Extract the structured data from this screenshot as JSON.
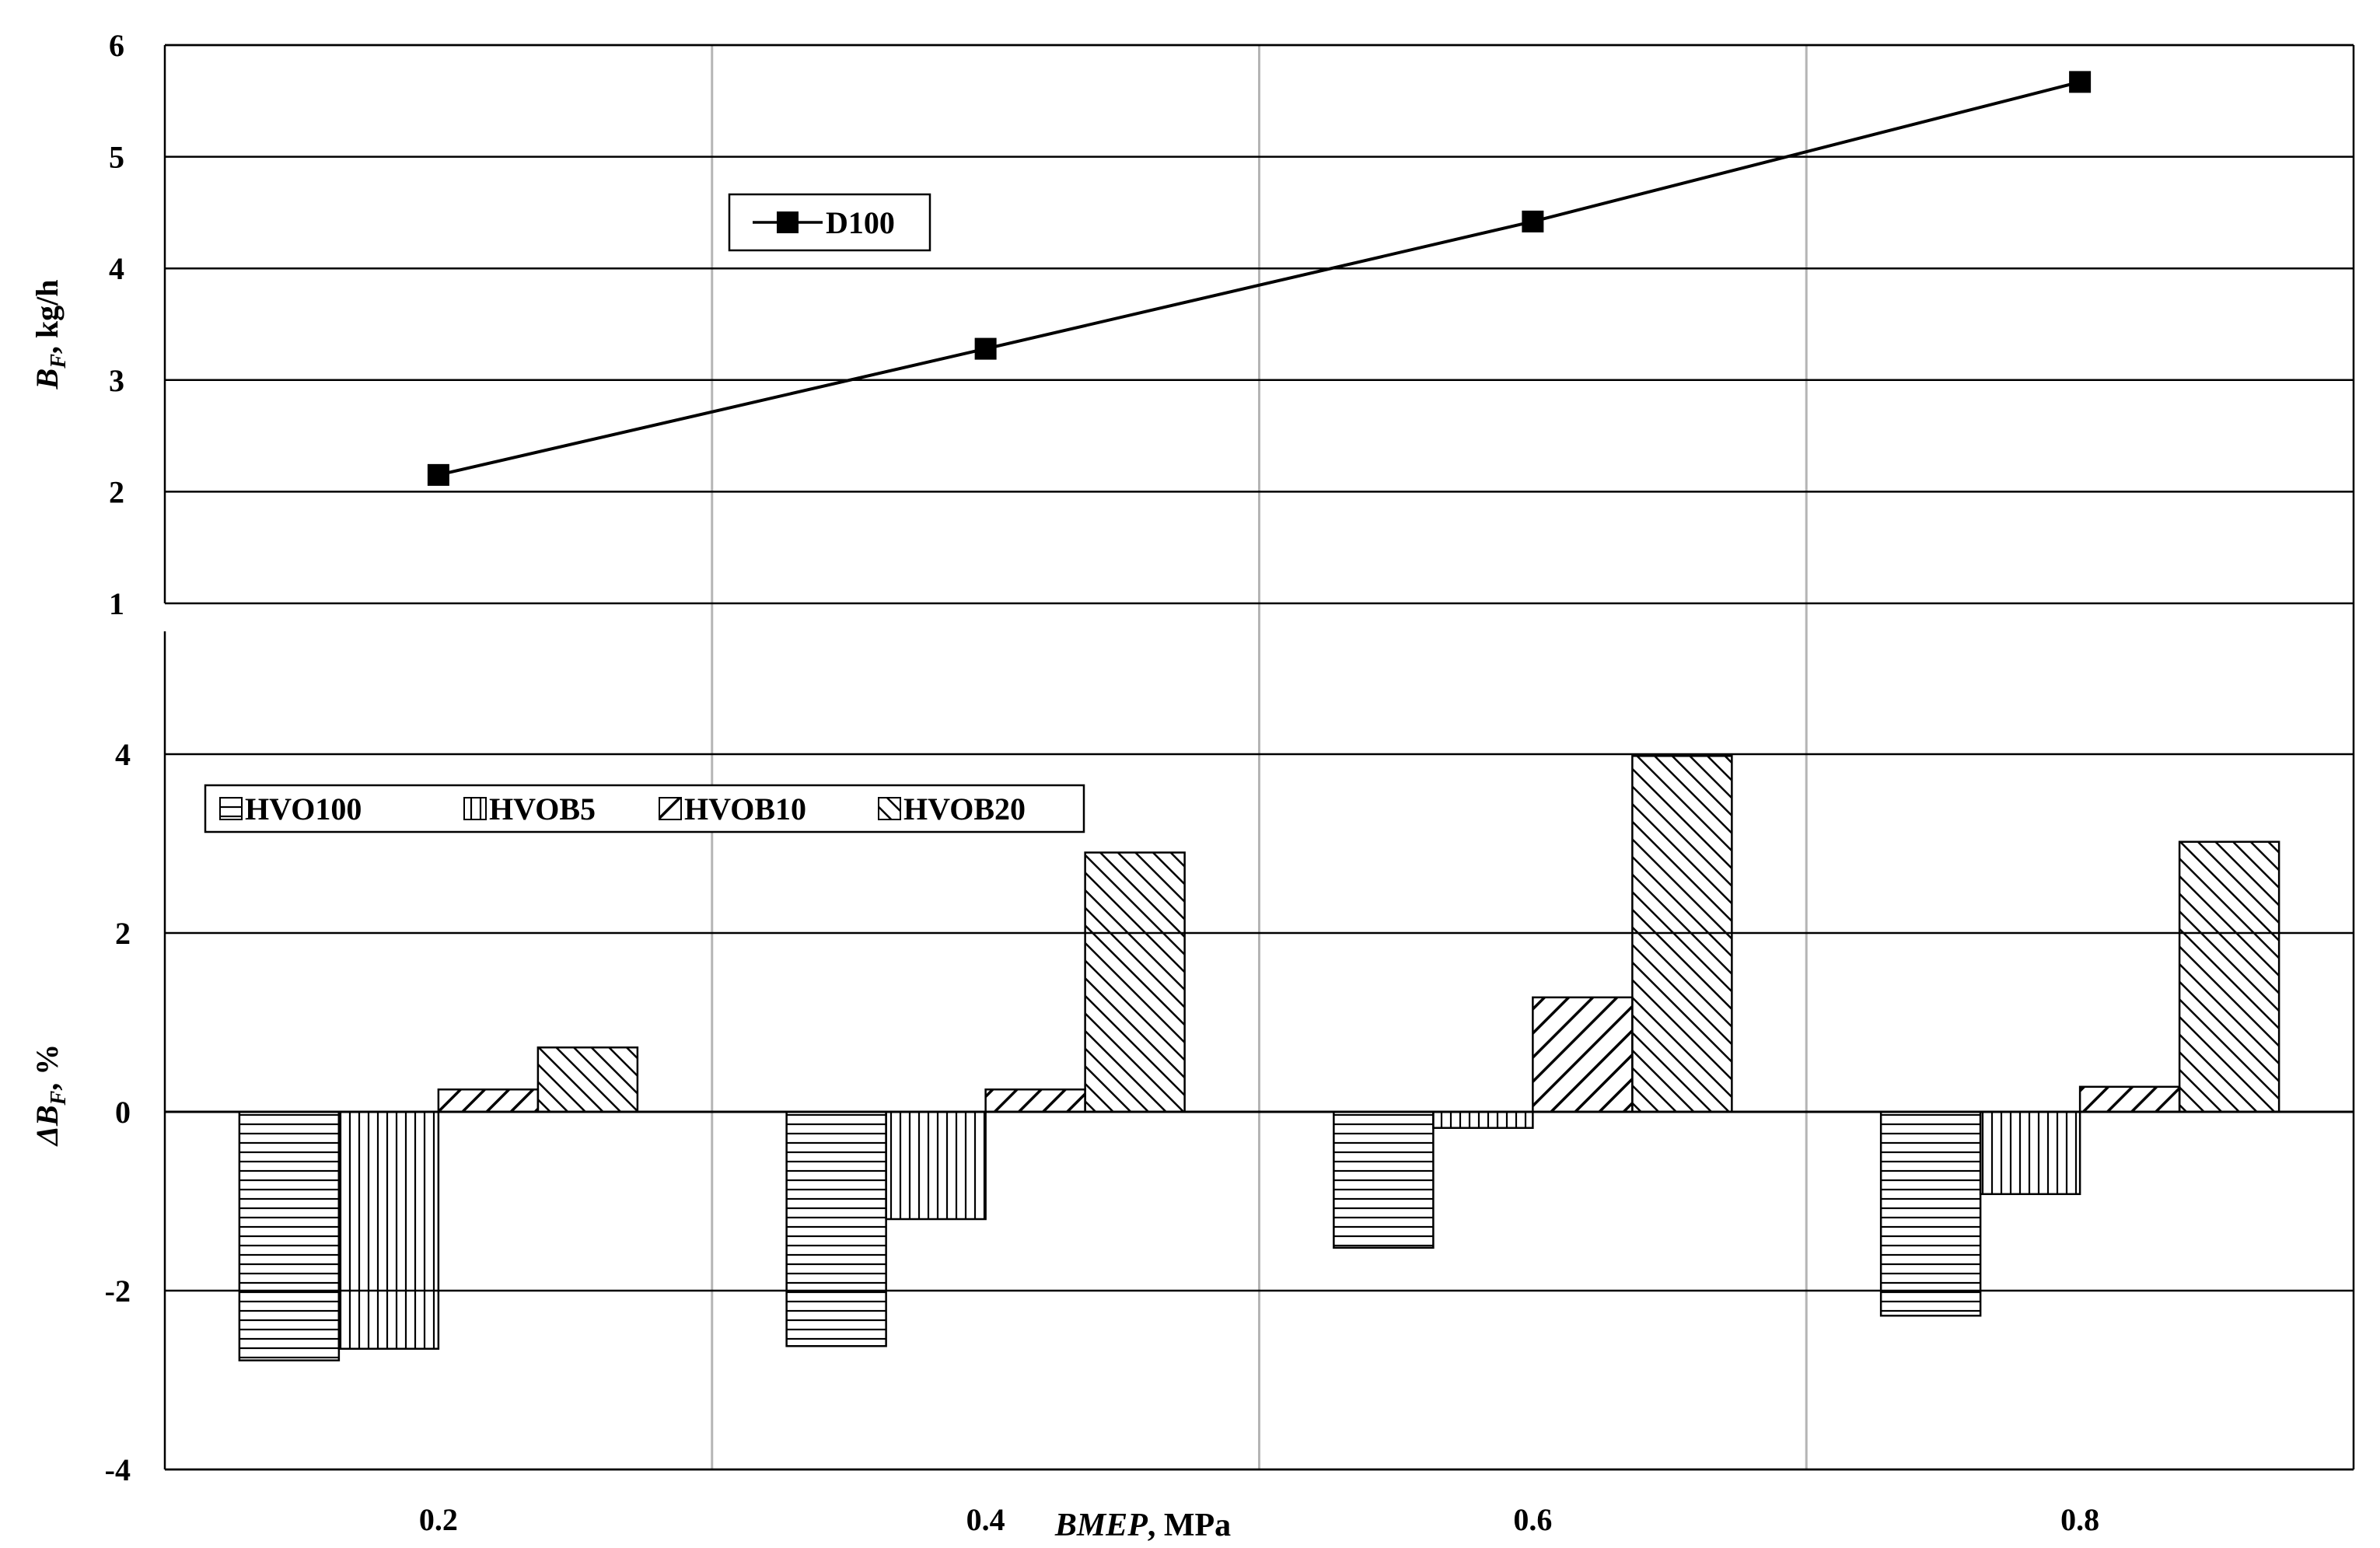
{
  "chart_data": [
    {
      "type": "line",
      "ylabel": "B_F, kg/h",
      "ylabel_main": "B",
      "ylabel_sub": "F",
      "ylabel_rest": ", kg/h",
      "ylim": [
        1,
        6
      ],
      "yticks": [
        "1",
        "2",
        "3",
        "4",
        "5",
        "6"
      ],
      "grid": true,
      "legend_position": "upper-left",
      "x": [
        0.2,
        0.4,
        0.6,
        0.8
      ],
      "series": [
        {
          "name": "D100",
          "marker": "square",
          "values": [
            2.15,
            3.28,
            4.42,
            5.67
          ]
        }
      ]
    },
    {
      "type": "bar",
      "ylabel": "ΔB_F, %",
      "ylabel_main": "ΔB",
      "ylabel_sub": "F",
      "ylabel_rest": ", %",
      "xlabel": "BMEP, MPa",
      "xlabel_italic": "BMEP",
      "xlabel_rest": ", MPa",
      "ylim": [
        -4,
        4
      ],
      "yticks": [
        "-4",
        "-2",
        "0",
        "2",
        "4"
      ],
      "grid": true,
      "legend_position": "top-left",
      "categories": [
        "0.2",
        "0.4",
        "0.6",
        "0.8"
      ],
      "series": [
        {
          "name": "HVO100",
          "pattern": "horizontal-lines",
          "values": [
            -2.78,
            -2.62,
            -1.52,
            -2.28
          ]
        },
        {
          "name": "HVOB5",
          "pattern": "vertical-lines",
          "values": [
            -2.65,
            -1.2,
            -0.18,
            -0.92
          ]
        },
        {
          "name": "HVOB10",
          "pattern": "wide-diagonal",
          "values": [
            0.25,
            0.25,
            1.28,
            0.28
          ]
        },
        {
          "name": "HVOB20",
          "pattern": "narrow-diagonal",
          "values": [
            0.72,
            2.9,
            3.98,
            3.02
          ]
        }
      ]
    }
  ]
}
